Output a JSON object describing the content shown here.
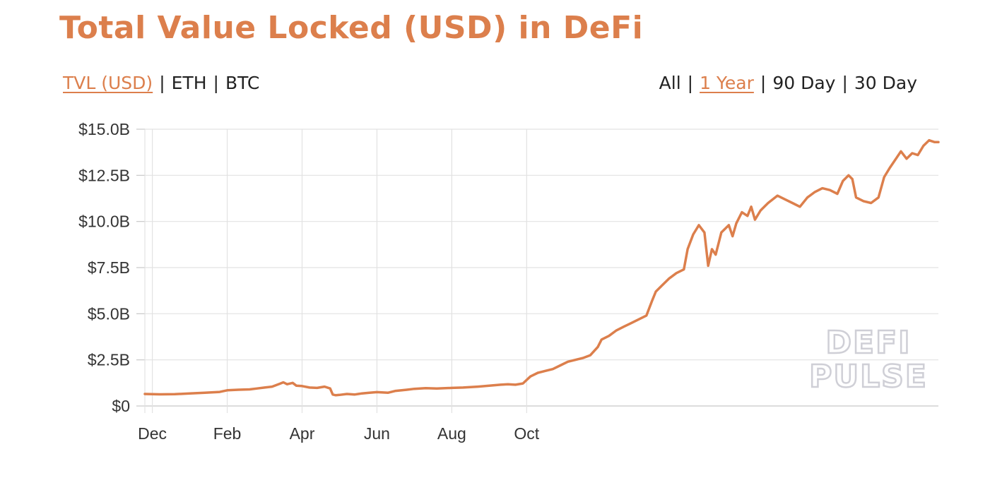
{
  "header": {
    "title": "Total Value Locked (USD) in DeFi"
  },
  "metric_tabs": [
    {
      "label": "TVL (USD)",
      "active": true
    },
    {
      "label": "ETH",
      "active": false
    },
    {
      "label": "BTC",
      "active": false
    }
  ],
  "range_tabs": [
    {
      "label": "All",
      "active": false
    },
    {
      "label": "1 Year",
      "active": true
    },
    {
      "label": "90 Day",
      "active": false
    },
    {
      "label": "30 Day",
      "active": false
    }
  ],
  "watermark": [
    "DEFI",
    "PULSE"
  ],
  "colors": {
    "accent": "#dc7f4c",
    "text": "#222222",
    "grid": "#e2e2e2",
    "watermark_stroke": "#cfcfd6"
  },
  "chart_data": {
    "type": "line",
    "title": "Total Value Locked (USD) in DeFi",
    "xlabel": "",
    "ylabel": "",
    "x_ticks": [
      "Dec",
      "Feb",
      "Apr",
      "Jun",
      "Aug",
      "Oct"
    ],
    "y_ticks": [
      "$0",
      "$2.5B",
      "$5.0B",
      "$7.5B",
      "$10.0B",
      "$12.5B",
      "$15.0B"
    ],
    "ylim": [
      0,
      15
    ],
    "y_unit": "billion USD",
    "grid": true,
    "series": [
      {
        "values": [
          [
            -0.2,
            0.65
          ],
          [
            0.2,
            0.63
          ],
          [
            0.6,
            0.64
          ],
          [
            1.0,
            0.68
          ],
          [
            1.4,
            0.72
          ],
          [
            1.8,
            0.76
          ],
          [
            2.0,
            0.85
          ],
          [
            2.3,
            0.88
          ],
          [
            2.6,
            0.9
          ],
          [
            2.8,
            0.95
          ],
          [
            3.0,
            1.0
          ],
          [
            3.2,
            1.05
          ],
          [
            3.4,
            1.2
          ],
          [
            3.5,
            1.28
          ],
          [
            3.6,
            1.18
          ],
          [
            3.75,
            1.25
          ],
          [
            3.85,
            1.1
          ],
          [
            4.0,
            1.08
          ],
          [
            4.2,
            1.0
          ],
          [
            4.4,
            0.98
          ],
          [
            4.6,
            1.05
          ],
          [
            4.75,
            0.95
          ],
          [
            4.82,
            0.62
          ],
          [
            4.9,
            0.58
          ],
          [
            5.0,
            0.6
          ],
          [
            5.2,
            0.65
          ],
          [
            5.4,
            0.62
          ],
          [
            5.6,
            0.68
          ],
          [
            5.8,
            0.72
          ],
          [
            6.0,
            0.75
          ],
          [
            6.3,
            0.72
          ],
          [
            6.5,
            0.82
          ],
          [
            6.8,
            0.88
          ],
          [
            7.0,
            0.93
          ],
          [
            7.3,
            0.97
          ],
          [
            7.6,
            0.95
          ],
          [
            8.0,
            0.98
          ],
          [
            8.3,
            1.0
          ],
          [
            8.7,
            1.05
          ],
          [
            9.0,
            1.1
          ],
          [
            9.3,
            1.15
          ],
          [
            9.5,
            1.18
          ],
          [
            9.7,
            1.15
          ],
          [
            9.9,
            1.22
          ],
          [
            10.1,
            1.6
          ],
          [
            10.3,
            1.8
          ],
          [
            10.5,
            1.9
          ],
          [
            10.7,
            2.0
          ],
          [
            10.9,
            2.2
          ],
          [
            11.1,
            2.4
          ],
          [
            11.3,
            2.5
          ],
          [
            11.5,
            2.6
          ],
          [
            11.7,
            2.75
          ],
          [
            11.9,
            3.2
          ],
          [
            12.0,
            3.6
          ],
          [
            12.2,
            3.8
          ],
          [
            12.4,
            4.1
          ],
          [
            12.6,
            4.3
          ],
          [
            12.8,
            4.5
          ],
          [
            13.0,
            4.7
          ],
          [
            13.2,
            4.9
          ],
          [
            13.35,
            5.7
          ],
          [
            13.45,
            6.2
          ],
          [
            13.6,
            6.5
          ],
          [
            13.8,
            6.9
          ],
          [
            14.0,
            7.2
          ],
          [
            14.2,
            7.4
          ],
          [
            14.3,
            8.5
          ],
          [
            14.45,
            9.3
          ],
          [
            14.6,
            9.8
          ],
          [
            14.75,
            9.4
          ],
          [
            14.85,
            7.6
          ],
          [
            14.95,
            8.5
          ],
          [
            15.05,
            8.2
          ],
          [
            15.2,
            9.4
          ],
          [
            15.4,
            9.8
          ],
          [
            15.5,
            9.2
          ],
          [
            15.6,
            9.9
          ],
          [
            15.75,
            10.5
          ],
          [
            15.9,
            10.3
          ],
          [
            16.0,
            10.8
          ],
          [
            16.1,
            10.1
          ],
          [
            16.25,
            10.6
          ],
          [
            16.45,
            11.0
          ],
          [
            16.7,
            11.4
          ],
          [
            16.9,
            11.2
          ],
          [
            17.1,
            11.0
          ],
          [
            17.3,
            10.8
          ],
          [
            17.5,
            11.3
          ],
          [
            17.7,
            11.6
          ],
          [
            17.9,
            11.8
          ],
          [
            18.1,
            11.7
          ],
          [
            18.3,
            11.5
          ],
          [
            18.45,
            12.2
          ],
          [
            18.6,
            12.5
          ],
          [
            18.7,
            12.3
          ],
          [
            18.8,
            11.3
          ],
          [
            19.0,
            11.1
          ],
          [
            19.2,
            11.0
          ],
          [
            19.4,
            11.3
          ],
          [
            19.55,
            12.4
          ],
          [
            19.7,
            12.9
          ],
          [
            19.9,
            13.5
          ],
          [
            20.0,
            13.8
          ],
          [
            20.15,
            13.4
          ],
          [
            20.3,
            13.7
          ],
          [
            20.45,
            13.6
          ],
          [
            20.6,
            14.1
          ],
          [
            20.75,
            14.4
          ],
          [
            20.9,
            14.3
          ],
          [
            21.0,
            14.3
          ]
        ]
      }
    ],
    "x_value_note": "x in months since Dec (Dec=0, Feb=2, Apr=4, Jun=6, Aug=8, Oct=10)"
  }
}
